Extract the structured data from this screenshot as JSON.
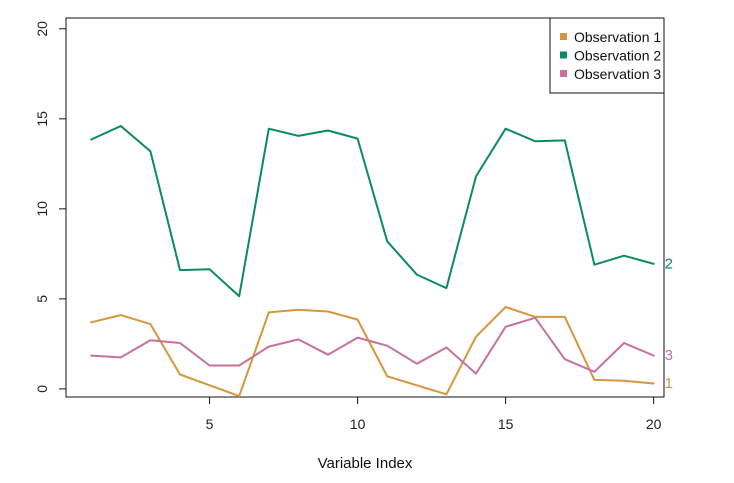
{
  "chart_data": {
    "type": "line",
    "title": "",
    "xlabel": "Variable Index",
    "ylabel": "",
    "xlim": [
      0.15,
      20.35
    ],
    "ylim": [
      -0.45,
      20.6
    ],
    "x_ticks": [
      5,
      10,
      15,
      20
    ],
    "x_tick_labels": [
      "5",
      "10",
      "15",
      "20"
    ],
    "y_ticks": [
      0,
      5,
      10,
      15,
      20
    ],
    "y_tick_labels": [
      "0",
      "5",
      "10",
      "15",
      "20"
    ],
    "grid": false,
    "legend_position": "top-right",
    "x": [
      1,
      2,
      3,
      4,
      5,
      6,
      7,
      8,
      9,
      10,
      11,
      12,
      13,
      14,
      15,
      16,
      17,
      18,
      19,
      20
    ],
    "series": [
      {
        "name": "Observation 1",
        "end_label": "1",
        "color": "#d6963d",
        "values": [
          3.7,
          4.1,
          3.6,
          0.8,
          0.2,
          -0.4,
          4.25,
          4.4,
          4.3,
          3.85,
          0.7,
          0.2,
          -0.3,
          2.9,
          4.55,
          4.0,
          4.0,
          0.5,
          0.45,
          0.3
        ]
      },
      {
        "name": "Observation 2",
        "end_label": "2",
        "color": "#0b8a63",
        "values": [
          13.85,
          14.6,
          13.2,
          6.6,
          6.65,
          5.15,
          14.45,
          14.05,
          14.35,
          13.9,
          8.2,
          6.35,
          5.6,
          11.8,
          14.45,
          13.75,
          13.8,
          6.9,
          7.4,
          6.95
        ]
      },
      {
        "name": "Observation 3",
        "end_label": "3",
        "color": "#c8719a",
        "values": [
          1.85,
          1.75,
          2.7,
          2.55,
          1.3,
          1.3,
          2.35,
          2.75,
          1.9,
          2.85,
          2.4,
          1.4,
          2.3,
          0.85,
          3.45,
          3.95,
          1.65,
          0.95,
          2.55,
          1.85
        ]
      }
    ]
  }
}
